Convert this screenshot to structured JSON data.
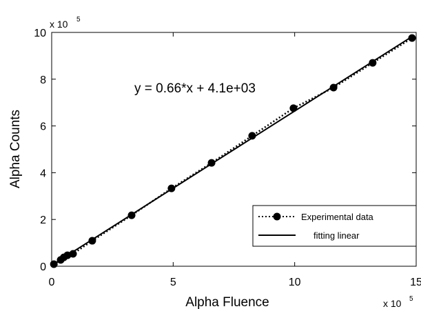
{
  "chart_data": {
    "type": "line",
    "xlabel": "Alpha Fluence",
    "ylabel": "Alpha Counts",
    "x_scale_label": {
      "base": "x 10",
      "exponent": "5"
    },
    "y_scale_label": {
      "base": "x 10",
      "exponent": "5"
    },
    "annotation": "y = 0.66*x + 4.1e+03",
    "xlim": [
      0,
      15
    ],
    "ylim": [
      0,
      10
    ],
    "xticks": [
      0,
      5,
      10,
      15
    ],
    "yticks": [
      0,
      2,
      4,
      6,
      8,
      10
    ],
    "grid": false,
    "legend": "lower right",
    "series": [
      {
        "name": "Experimental data",
        "color": "#000000",
        "line_style": "dotted",
        "marker": "circle",
        "x": [
          0.09,
          0.37,
          0.5,
          0.65,
          0.88,
          1.67,
          3.29,
          4.93,
          6.58,
          8.25,
          9.95,
          11.6,
          13.21,
          14.83
        ],
        "values": [
          0.09,
          0.27,
          0.38,
          0.47,
          0.53,
          1.09,
          2.18,
          3.33,
          4.42,
          5.58,
          6.76,
          7.64,
          8.7,
          9.76
        ]
      },
      {
        "name": "fitting linear",
        "color": "#000000",
        "line_style": "solid",
        "marker": "none",
        "x": [
          0,
          14.9
        ],
        "values": [
          0.04,
          9.87
        ]
      }
    ]
  }
}
